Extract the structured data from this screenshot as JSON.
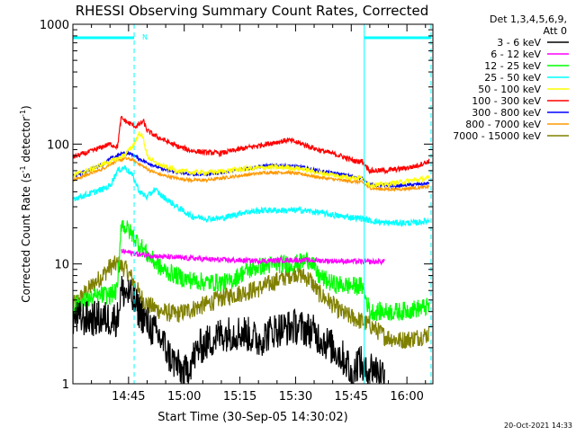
{
  "chart_data": {
    "type": "line",
    "title": "RHESSI Observing Summary Count Rates, Corrected",
    "xlabel": "Start Time (30-Sep-05 14:30:02)",
    "ylabel_main": "Corrected Count Rate (s",
    "ylabel_sup1": "-1",
    "ylabel_mid": " detector",
    "ylabel_sup2": "-1",
    "ylabel_end": ")",
    "yscale": "log",
    "ylim": [
      1,
      1000
    ],
    "xlim_minutes": [
      0,
      97
    ],
    "x_units": "minutes after 14:30:02",
    "x_ticks": [
      {
        "label": "14:45",
        "minutes": 15
      },
      {
        "label": "15:00",
        "minutes": 30
      },
      {
        "label": "15:15",
        "minutes": 45
      },
      {
        "label": "15:30",
        "minutes": 60
      },
      {
        "label": "15:45",
        "minutes": 75
      },
      {
        "label": "16:00",
        "minutes": 90
      }
    ],
    "y_ticks": [
      {
        "label": "1",
        "value": 1
      },
      {
        "label": "10",
        "value": 10
      },
      {
        "label": "100",
        "value": 100
      },
      {
        "label": "1000",
        "value": 1000
      }
    ],
    "legend_header": [
      "Det 1,3,4,5,6,9,",
      "Att 0"
    ],
    "legend_position": "top-right",
    "annotation_n": "N",
    "night_intervals_minutes": [
      [
        -1,
        16.5
      ],
      [
        78.5,
        96.5
      ]
    ],
    "timestamp": "20-Oct-2021 14:33",
    "series": [
      {
        "name": "3 - 6 keV",
        "color": "#000000",
        "x": [
          0,
          6,
          12,
          13,
          15,
          18,
          20,
          24,
          26,
          30,
          34,
          40,
          46,
          50,
          54,
          60,
          64,
          66,
          70,
          74,
          75,
          77,
          79,
          80,
          84
        ],
        "y": [
          3.5,
          3.5,
          3.5,
          6,
          5.6,
          4,
          3.2,
          2.3,
          1.7,
          1.2,
          2.0,
          2.6,
          2.7,
          2.3,
          2.8,
          3.0,
          2.8,
          2.5,
          2.0,
          1.5,
          1.1,
          1.6,
          1.2,
          1.4,
          1.2
        ]
      },
      {
        "name": "6 - 12 keV",
        "color": "#ff00ff",
        "x": [
          13,
          15,
          18,
          24,
          30,
          40,
          50,
          60,
          70,
          80,
          84
        ],
        "y": [
          12.8,
          12.5,
          12,
          11.5,
          11.2,
          10.8,
          10.6,
          10.8,
          10.6,
          10.4,
          10.5
        ]
      },
      {
        "name": "12 - 25 keV",
        "color": "#00ff00",
        "x": [
          0,
          4,
          8,
          10,
          12,
          13,
          15,
          17,
          20,
          24,
          30,
          36,
          42,
          46,
          50,
          56,
          60,
          64,
          66,
          70,
          74,
          78,
          80,
          84,
          88,
          92,
          96
        ],
        "y": [
          4.5,
          5,
          5.5,
          5.5,
          6,
          22,
          19,
          16,
          12,
          9,
          7.5,
          7,
          7,
          8.5,
          9.5,
          10,
          10,
          11,
          8,
          6.8,
          6.6,
          6.5,
          4.0,
          4.0,
          4.0,
          4.2,
          4.4
        ]
      },
      {
        "name": "25 - 50 keV",
        "color": "#00ffff",
        "x": [
          0,
          4,
          8,
          10,
          12,
          14,
          16,
          18,
          20,
          22,
          24,
          28,
          32,
          36,
          40,
          46,
          52,
          58,
          62,
          66,
          72,
          78,
          80,
          84,
          88,
          92,
          96
        ],
        "y": [
          35,
          38,
          42,
          45,
          60,
          64,
          55,
          40,
          36,
          42,
          37,
          30,
          25,
          24,
          24,
          27,
          28,
          28,
          28,
          27,
          25,
          24,
          23,
          22,
          22,
          22,
          23
        ]
      },
      {
        "name": "50 - 100 keV",
        "color": "#ffff00",
        "x": [
          0,
          4,
          8,
          10,
          12,
          14,
          16,
          18,
          19,
          20,
          22,
          24,
          28,
          32,
          36,
          40,
          46,
          52,
          58,
          62,
          66,
          72,
          78,
          80,
          84,
          88,
          92,
          96
        ],
        "y": [
          55,
          60,
          68,
          72,
          75,
          82,
          95,
          125,
          110,
          80,
          70,
          66,
          60,
          58,
          58,
          59,
          62,
          64,
          64,
          62,
          58,
          54,
          52,
          46,
          46,
          48,
          50,
          52
        ]
      },
      {
        "name": "100 - 300 keV",
        "color": "#ff0000",
        "x": [
          0,
          4,
          8,
          10,
          12,
          13,
          15,
          17,
          19,
          20,
          22,
          24,
          28,
          32,
          36,
          40,
          46,
          52,
          58,
          62,
          66,
          72,
          76,
          78,
          80,
          84,
          88,
          92,
          96
        ],
        "y": [
          78,
          85,
          95,
          100,
          95,
          165,
          150,
          140,
          155,
          130,
          118,
          110,
          96,
          88,
          85,
          84,
          92,
          100,
          108,
          100,
          90,
          80,
          72,
          72,
          60,
          60,
          62,
          65,
          72
        ]
      },
      {
        "name": "300 - 800 keV",
        "color": "#0000ff",
        "x": [
          0,
          4,
          8,
          10,
          12,
          14,
          16,
          18,
          20,
          22,
          24,
          28,
          32,
          36,
          40,
          46,
          52,
          58,
          62,
          66,
          72,
          78,
          80,
          84,
          88,
          92,
          96
        ],
        "y": [
          54,
          60,
          68,
          75,
          80,
          85,
          82,
          75,
          70,
          66,
          62,
          58,
          56,
          56,
          58,
          62,
          66,
          66,
          64,
          60,
          56,
          52,
          46,
          45,
          45,
          46,
          47
        ]
      },
      {
        "name": "800 - 7000 keV",
        "color": "#ff9900",
        "x": [
          0,
          4,
          8,
          10,
          12,
          14,
          16,
          18,
          20,
          22,
          24,
          28,
          32,
          36,
          40,
          46,
          52,
          58,
          62,
          66,
          72,
          78,
          80,
          84,
          88,
          92,
          96
        ],
        "y": [
          50,
          56,
          62,
          68,
          72,
          76,
          74,
          68,
          62,
          58,
          55,
          52,
          50,
          50,
          52,
          55,
          58,
          58,
          56,
          53,
          50,
          48,
          43,
          42,
          42,
          43,
          44
        ]
      },
      {
        "name": "7000 - 15000 keV",
        "color": "#808000",
        "x": [
          0,
          4,
          6,
          8,
          10,
          12,
          14,
          16,
          18,
          20,
          24,
          28,
          32,
          36,
          40,
          46,
          50,
          56,
          60,
          64,
          66,
          70,
          72,
          74,
          76,
          78,
          80,
          84,
          88,
          92,
          96
        ],
        "y": [
          4.5,
          6,
          7,
          8,
          9.5,
          10,
          9.2,
          7.5,
          5.5,
          4.6,
          4.0,
          3.8,
          4.2,
          4.6,
          5.2,
          5.8,
          6.2,
          7.5,
          8.5,
          7.4,
          5.8,
          4.6,
          4.0,
          3.7,
          3.5,
          3.3,
          3.1,
          2.5,
          2.3,
          2.4,
          2.6
        ]
      }
    ]
  }
}
